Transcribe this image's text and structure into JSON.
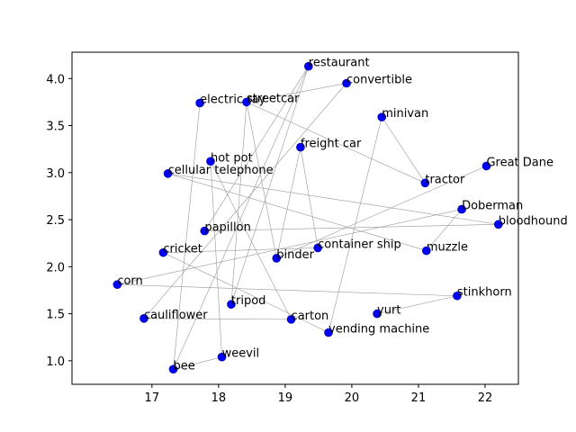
{
  "chart_data": {
    "type": "scatter",
    "title": "",
    "xlabel": "",
    "ylabel": "",
    "xlim": [
      15.8,
      22.5
    ],
    "ylim": [
      0.75,
      4.28
    ],
    "x_ticks": [
      17,
      18,
      19,
      20,
      21,
      22
    ],
    "y_ticks": [
      1.0,
      1.5,
      2.0,
      2.5,
      3.0,
      3.5,
      4.0
    ],
    "grid": false,
    "marker_color": "#0000ff",
    "edge_color": "#999999",
    "points": [
      {
        "label": "restaurant",
        "x": 19.35,
        "y": 4.13
      },
      {
        "label": "convertible",
        "x": 19.92,
        "y": 3.95
      },
      {
        "label": "electric ray",
        "x": 17.72,
        "y": 3.74
      },
      {
        "label": "streetcar",
        "x": 18.42,
        "y": 3.75
      },
      {
        "label": "minivan",
        "x": 20.45,
        "y": 3.59
      },
      {
        "label": "freight car",
        "x": 19.23,
        "y": 3.27
      },
      {
        "label": "hot pot",
        "x": 17.88,
        "y": 3.12
      },
      {
        "label": "cellular telephone",
        "x": 17.24,
        "y": 2.99
      },
      {
        "label": "Great Dane",
        "x": 22.02,
        "y": 3.07
      },
      {
        "label": "tractor",
        "x": 21.1,
        "y": 2.89
      },
      {
        "label": "Doberman",
        "x": 21.65,
        "y": 2.61
      },
      {
        "label": "bloodhound",
        "x": 22.2,
        "y": 2.45
      },
      {
        "label": "papillon",
        "x": 17.79,
        "y": 2.38
      },
      {
        "label": "container ship",
        "x": 19.49,
        "y": 2.2
      },
      {
        "label": "muzzle",
        "x": 21.12,
        "y": 2.17
      },
      {
        "label": "cricket",
        "x": 17.17,
        "y": 2.15
      },
      {
        "label": "binder",
        "x": 18.87,
        "y": 2.09
      },
      {
        "label": "corn",
        "x": 16.48,
        "y": 1.81
      },
      {
        "label": "stinkhorn",
        "x": 21.58,
        "y": 1.69
      },
      {
        "label": "tripod",
        "x": 18.19,
        "y": 1.6
      },
      {
        "label": "yurt",
        "x": 20.38,
        "y": 1.5
      },
      {
        "label": "cauliflower",
        "x": 16.88,
        "y": 1.45
      },
      {
        "label": "carton",
        "x": 19.09,
        "y": 1.44
      },
      {
        "label": "vending machine",
        "x": 19.65,
        "y": 1.3
      },
      {
        "label": "weevil",
        "x": 18.05,
        "y": 1.04
      },
      {
        "label": "bee",
        "x": 17.32,
        "y": 0.91
      }
    ],
    "edges": [
      [
        "restaurant",
        "tripod"
      ],
      [
        "restaurant",
        "papillon"
      ],
      [
        "convertible",
        "streetcar"
      ],
      [
        "convertible",
        "cauliflower"
      ],
      [
        "electric ray",
        "bee"
      ],
      [
        "streetcar",
        "tractor"
      ],
      [
        "streetcar",
        "binder"
      ],
      [
        "minivan",
        "tractor"
      ],
      [
        "minivan",
        "vending machine"
      ],
      [
        "freight car",
        "binder"
      ],
      [
        "freight car",
        "container ship"
      ],
      [
        "hot pot",
        "weevil"
      ],
      [
        "hot pot",
        "carton"
      ],
      [
        "cellular telephone",
        "bloodhound"
      ],
      [
        "cellular telephone",
        "muzzle"
      ],
      [
        "Great Dane",
        "binder"
      ],
      [
        "Doberman",
        "muzzle"
      ],
      [
        "Doberman",
        "corn"
      ],
      [
        "bloodhound",
        "papillon"
      ],
      [
        "container ship",
        "cricket"
      ],
      [
        "cricket",
        "vending machine"
      ],
      [
        "corn",
        "stinkhorn"
      ],
      [
        "stinkhorn",
        "yurt"
      ],
      [
        "cauliflower",
        "carton"
      ],
      [
        "weevil",
        "bee"
      ],
      [
        "streetcar",
        "tripod"
      ],
      [
        "restaurant",
        "bee"
      ]
    ]
  }
}
